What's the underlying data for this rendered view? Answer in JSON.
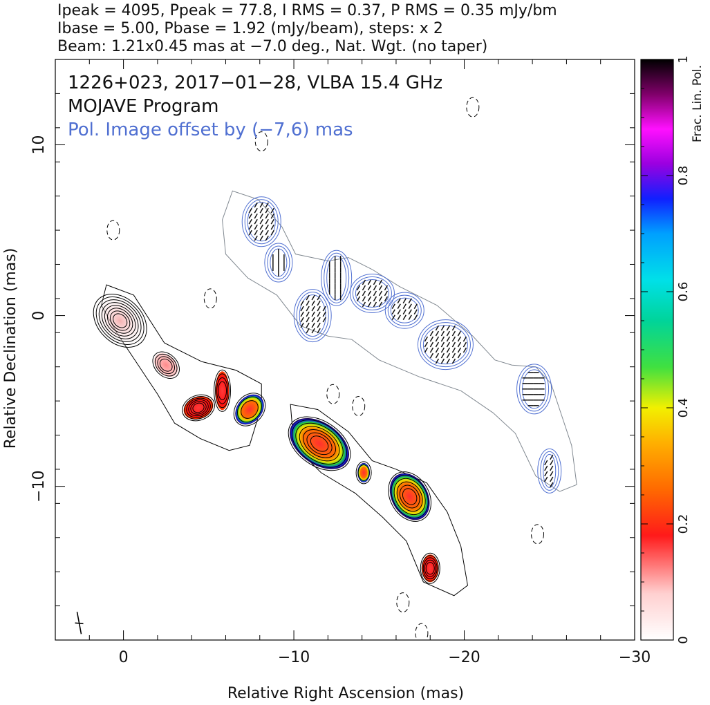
{
  "header": {
    "line1": "Ipeak = 4095, Ppeak = 77.8, I RMS = 0.37, P RMS = 0.35 mJy/bm",
    "line2": "Ibase = 5.00, Pbase = 1.92 (mJy/beam), steps: x 2",
    "line3": "Beam: 1.21x0.45 mas at −7.0 deg., Nat. Wgt. (no taper)"
  },
  "plot": {
    "title_line1": "1226+023, 2017−01−28, VLBA 15.4 GHz",
    "title_line2": "MOJAVE Program",
    "title_line3": "Pol. Image offset by (−7,6) mas",
    "xlabel": "Relative Right Ascension (mas)",
    "ylabel": "Relative Declination (mas)",
    "colorbar_label": "Frac. Lin. Pol."
  },
  "colors": {
    "total_intensity_contour": "#000000",
    "polarization_contour": "#4f6fd1",
    "lowest_contour": "#808890",
    "offset_text": "#4f6fd1"
  },
  "chart_data": {
    "type": "heatmap",
    "description_kind": "VLBA total-intensity contour map with fractional polarization color overlay",
    "xlim": [
      4,
      -30
    ],
    "ylim": [
      -19,
      15
    ],
    "x_ticks": [
      0,
      -10,
      -20,
      -30
    ],
    "x_tick_labels": [
      "0",
      "−10",
      "−20",
      "−30"
    ],
    "y_ticks": [
      10,
      0,
      -10
    ],
    "y_tick_labels": [
      "10",
      "0",
      "−10"
    ],
    "colorbar": {
      "range": [
        0,
        1
      ],
      "ticks": [
        0,
        0.2,
        0.4,
        0.6,
        0.8,
        1
      ],
      "tick_labels": [
        "0",
        "0.2",
        "0.4",
        "0.6",
        "0.8",
        "1"
      ]
    },
    "intensity_components": [
      {
        "x": 0.2,
        "y": -0.3,
        "frac_pol": 0.05
      },
      {
        "x": -2.5,
        "y": -2.9,
        "frac_pol": 0.08
      },
      {
        "x": -4.4,
        "y": -5.4,
        "frac_pol": 0.12
      },
      {
        "x": -5.8,
        "y": -4.4,
        "frac_pol": 0.15
      },
      {
        "x": -7.4,
        "y": -5.5,
        "frac_pol": 0.3
      },
      {
        "x": -11.5,
        "y": -7.5,
        "frac_pol": 0.25
      },
      {
        "x": -14.1,
        "y": -9.2,
        "frac_pol": 0.3
      },
      {
        "x": -16.8,
        "y": -10.6,
        "frac_pol": 0.15
      },
      {
        "x": -18.0,
        "y": -14.8,
        "frac_pol": 0.08
      }
    ],
    "polarization_components": [
      {
        "x": -8.1,
        "y": 5.5
      },
      {
        "x": -9.1,
        "y": 3.1
      },
      {
        "x": -11.1,
        "y": 0.0
      },
      {
        "x": -12.5,
        "y": 2.2
      },
      {
        "x": -14.6,
        "y": 1.3
      },
      {
        "x": -16.5,
        "y": 0.3
      },
      {
        "x": -18.9,
        "y": -1.7
      },
      {
        "x": -24.1,
        "y": -4.3
      },
      {
        "x": -25.0,
        "y": -9.1
      }
    ]
  }
}
